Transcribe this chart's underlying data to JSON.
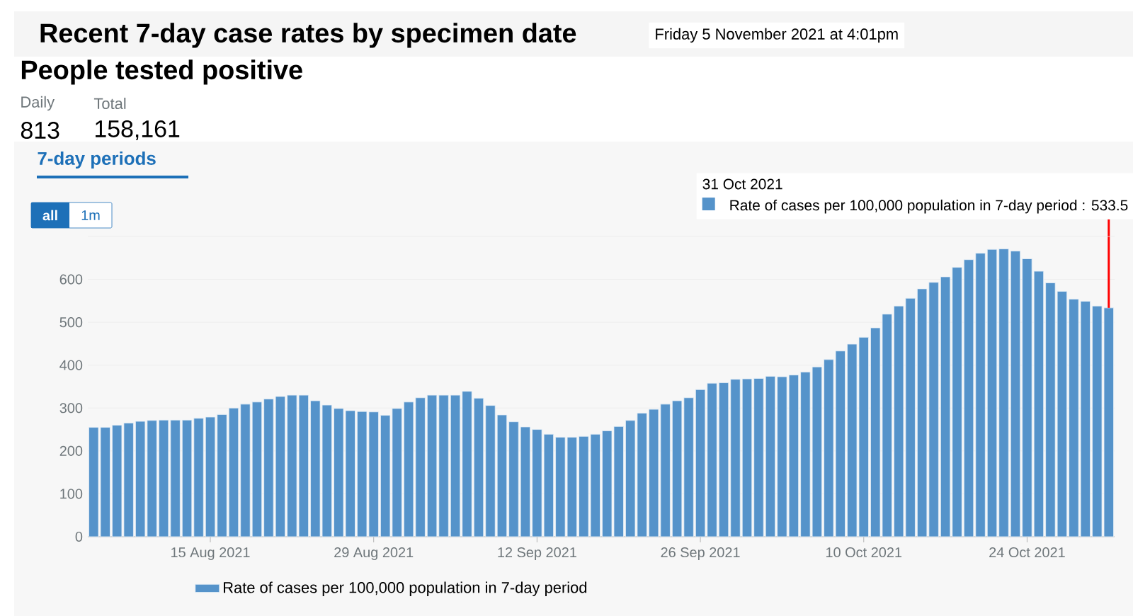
{
  "chart_data": {
    "type": "bar",
    "title": "Recent 7-day case rates by specimen date",
    "subtitle": "Friday 5 November 2021 at 4:01pm",
    "x": [
      "2021-08-05",
      "2021-08-06",
      "2021-08-07",
      "2021-08-08",
      "2021-08-09",
      "2021-08-10",
      "2021-08-11",
      "2021-08-12",
      "2021-08-13",
      "2021-08-14",
      "2021-08-15",
      "2021-08-16",
      "2021-08-17",
      "2021-08-18",
      "2021-08-19",
      "2021-08-20",
      "2021-08-21",
      "2021-08-22",
      "2021-08-23",
      "2021-08-24",
      "2021-08-25",
      "2021-08-26",
      "2021-08-27",
      "2021-08-28",
      "2021-08-29",
      "2021-08-30",
      "2021-08-31",
      "2021-09-01",
      "2021-09-02",
      "2021-09-03",
      "2021-09-04",
      "2021-09-05",
      "2021-09-06",
      "2021-09-07",
      "2021-09-08",
      "2021-09-09",
      "2021-09-10",
      "2021-09-11",
      "2021-09-12",
      "2021-09-13",
      "2021-09-14",
      "2021-09-15",
      "2021-09-16",
      "2021-09-17",
      "2021-09-18",
      "2021-09-19",
      "2021-09-20",
      "2021-09-21",
      "2021-09-22",
      "2021-09-23",
      "2021-09-24",
      "2021-09-25",
      "2021-09-26",
      "2021-09-27",
      "2021-09-28",
      "2021-09-29",
      "2021-09-30",
      "2021-10-01",
      "2021-10-02",
      "2021-10-03",
      "2021-10-04",
      "2021-10-05",
      "2021-10-06",
      "2021-10-07",
      "2021-10-08",
      "2021-10-09",
      "2021-10-10",
      "2021-10-11",
      "2021-10-12",
      "2021-10-13",
      "2021-10-14",
      "2021-10-15",
      "2021-10-16",
      "2021-10-17",
      "2021-10-18",
      "2021-10-19",
      "2021-10-20",
      "2021-10-21",
      "2021-10-22",
      "2021-10-23",
      "2021-10-24",
      "2021-10-25",
      "2021-10-26",
      "2021-10-27",
      "2021-10-28",
      "2021-10-29",
      "2021-10-30",
      "2021-10-31"
    ],
    "series": [
      {
        "name": "Rate of cases per 100,000 population in 7-day period",
        "color": "#5593ca",
        "values": [
          255,
          255,
          260,
          265,
          269,
          271,
          272,
          272,
          272,
          276,
          279,
          285,
          300,
          309,
          314,
          321,
          327,
          330,
          330,
          317,
          307,
          299,
          294,
          292,
          291,
          283,
          299,
          314,
          324,
          330,
          330,
          330,
          339,
          323,
          306,
          284,
          268,
          256,
          250,
          239,
          232,
          232,
          234,
          239,
          247,
          257,
          271,
          288,
          297,
          309,
          317,
          324,
          343,
          358,
          359,
          367,
          368,
          369,
          374,
          373,
          377,
          384,
          396,
          413,
          433,
          449,
          465,
          487,
          519,
          538,
          556,
          578,
          593,
          606,
          628,
          646,
          661,
          670,
          671,
          666,
          648,
          619,
          592,
          572,
          554,
          549,
          538,
          533.5
        ]
      }
    ],
    "xlim": [
      "2021-08-04T12:00",
      "2021-10-31T12:00"
    ],
    "xticks": [
      {
        "value": "2021-08-15",
        "label": "15 Aug 2021"
      },
      {
        "value": "2021-08-29",
        "label": "29 Aug 2021"
      },
      {
        "value": "2021-09-12",
        "label": "12 Sep 2021"
      },
      {
        "value": "2021-09-26",
        "label": "26 Sep 2021"
      },
      {
        "value": "2021-10-10",
        "label": "10 Oct 2021"
      },
      {
        "value": "2021-10-24",
        "label": "24 Oct 2021"
      }
    ],
    "ylim": [
      0,
      700
    ],
    "yticks": [
      0,
      100,
      200,
      300,
      400,
      500,
      600
    ],
    "grid": "y",
    "legend": "bottom",
    "annotations": [
      "People tested positive",
      "Daily",
      "813",
      "Total",
      "158,161",
      "7-day periods",
      "all",
      "1m",
      "31 Oct 2021",
      {
        "text": "Rate of cases per 100,000 population in 7-day period : 533.5",
        "x": "2021-10-31",
        "y": 533.5
      }
    ]
  }
}
